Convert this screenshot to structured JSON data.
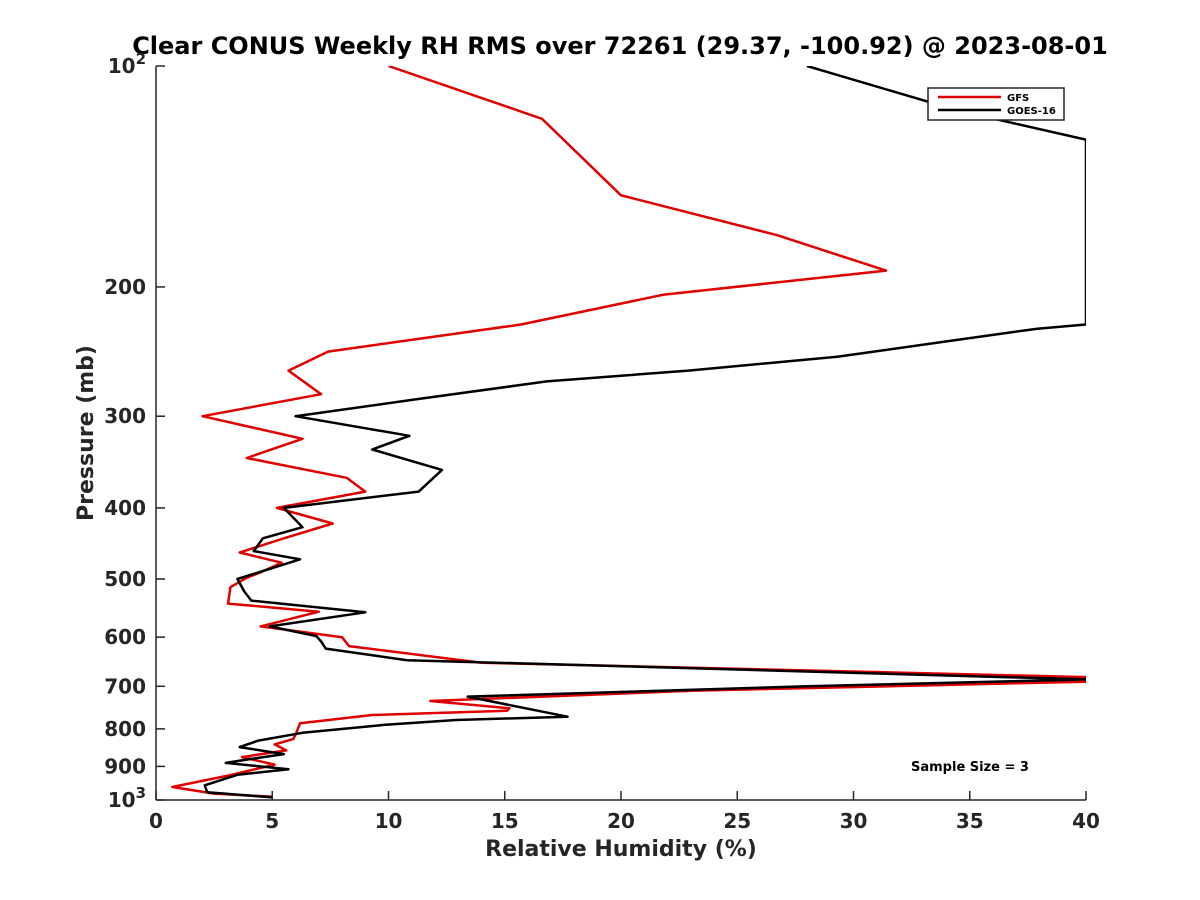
{
  "chart_data": {
    "type": "line",
    "title": "Clear CONUS Weekly RH RMS over 72261 (29.37, -100.92) @ 2023-08-01",
    "xlabel": "Relative Humidity (%)",
    "ylabel": "Pressure (mb)",
    "xlim": [
      0,
      40
    ],
    "ylim": [
      100,
      1000
    ],
    "y_scale": "log",
    "y_reversed": true,
    "grid": false,
    "legend_position": "top-right",
    "x_ticks": [
      "0",
      "5",
      "10",
      "15",
      "20",
      "25",
      "30",
      "35",
      "40"
    ],
    "y_ticks": [
      {
        "value": 100,
        "base": "10",
        "exp": "2"
      },
      {
        "value": 200,
        "label": "200"
      },
      {
        "value": 300,
        "label": "300"
      },
      {
        "value": 400,
        "label": "400"
      },
      {
        "value": 500,
        "label": "500"
      },
      {
        "value": 600,
        "label": "600"
      },
      {
        "value": 700,
        "label": "700"
      },
      {
        "value": 800,
        "label": "800"
      },
      {
        "value": 900,
        "label": "900"
      },
      {
        "value": 1000,
        "base": "10",
        "exp": "3"
      }
    ],
    "series": [
      {
        "name": "GFS",
        "color": "#e00000",
        "points": [
          [
            10.0,
            100
          ],
          [
            16.6,
            118
          ],
          [
            20.0,
            150
          ],
          [
            26.7,
            170
          ],
          [
            31.4,
            190
          ],
          [
            21.8,
            205
          ],
          [
            15.7,
            225
          ],
          [
            7.4,
            245
          ],
          [
            5.7,
            260
          ],
          [
            7.1,
            280
          ],
          [
            2.0,
            300
          ],
          [
            6.3,
            322
          ],
          [
            3.9,
            342
          ],
          [
            8.2,
            364
          ],
          [
            9.0,
            380
          ],
          [
            5.2,
            400
          ],
          [
            7.6,
            420
          ],
          [
            5.5,
            440
          ],
          [
            3.6,
            460
          ],
          [
            5.4,
            475
          ],
          [
            4.6,
            488
          ],
          [
            3.9,
            498
          ],
          [
            3.2,
            513
          ],
          [
            3.1,
            540
          ],
          [
            7.0,
            554
          ],
          [
            4.5,
            580
          ],
          [
            8.0,
            600
          ],
          [
            8.3,
            617
          ],
          [
            14.0,
            650
          ],
          [
            40.0,
            680
          ],
          [
            40.0,
            690
          ],
          [
            23.0,
            710
          ],
          [
            11.8,
            733
          ],
          [
            15.2,
            750
          ],
          [
            15.1,
            756
          ],
          [
            9.3,
            766
          ],
          [
            6.2,
            786
          ],
          [
            6.0,
            815
          ],
          [
            5.9,
            826
          ],
          [
            5.1,
            840
          ],
          [
            5.6,
            856
          ],
          [
            3.7,
            874
          ],
          [
            5.1,
            895
          ],
          [
            3.2,
            925
          ],
          [
            0.7,
            960
          ],
          [
            2.5,
            980
          ],
          [
            5.0,
            990
          ]
        ]
      },
      {
        "name": "GOES-16",
        "color": "#000000",
        "points": [
          [
            28.0,
            100
          ],
          [
            34.5,
            115
          ],
          [
            40.0,
            126
          ],
          [
            40.0,
            225
          ],
          [
            37.9,
            228
          ],
          [
            34.5,
            236
          ],
          [
            29.3,
            249
          ],
          [
            22.9,
            260
          ],
          [
            16.8,
            269
          ],
          [
            11.0,
            285
          ],
          [
            6.0,
            300
          ],
          [
            10.9,
            319
          ],
          [
            9.3,
            333
          ],
          [
            12.3,
            355
          ],
          [
            11.3,
            380
          ],
          [
            5.5,
            400
          ],
          [
            6.3,
            425
          ],
          [
            4.6,
            440
          ],
          [
            4.2,
            458
          ],
          [
            6.2,
            470
          ],
          [
            3.5,
            500
          ],
          [
            3.8,
            520
          ],
          [
            4.1,
            535
          ],
          [
            9.0,
            555
          ],
          [
            4.9,
            580
          ],
          [
            6.9,
            598
          ],
          [
            7.1,
            608
          ],
          [
            7.3,
            622
          ],
          [
            10.8,
            645
          ],
          [
            40.0,
            685
          ],
          [
            28.0,
            700
          ],
          [
            13.4,
            723
          ],
          [
            17.7,
            770
          ],
          [
            12.9,
            778
          ],
          [
            9.8,
            790
          ],
          [
            6.3,
            810
          ],
          [
            4.4,
            830
          ],
          [
            3.6,
            847
          ],
          [
            5.5,
            866
          ],
          [
            3.9,
            881
          ],
          [
            3.0,
            890
          ],
          [
            5.7,
            908
          ],
          [
            3.5,
            924
          ],
          [
            2.1,
            955
          ],
          [
            2.2,
            976
          ],
          [
            5.0,
            992
          ]
        ]
      }
    ],
    "annotations": [
      "Sample Size = 3"
    ]
  }
}
